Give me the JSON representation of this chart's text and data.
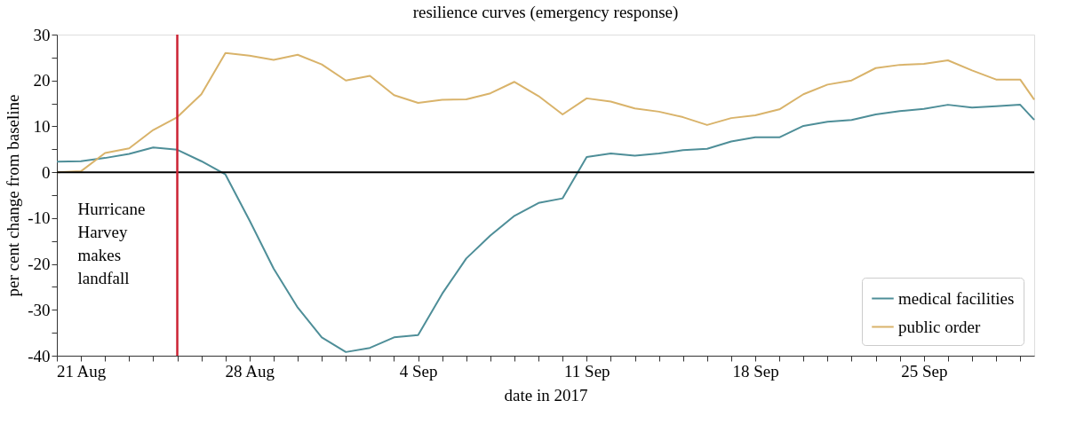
{
  "chart_data": {
    "type": "line",
    "title": "resilience curves (emergency response)",
    "xlabel": "date in 2017",
    "ylabel": "per cent change from baseline",
    "x": [
      "2017-08-20",
      "2017-08-21",
      "2017-08-22",
      "2017-08-23",
      "2017-08-24",
      "2017-08-25",
      "2017-08-26",
      "2017-08-27",
      "2017-08-28",
      "2017-08-29",
      "2017-08-30",
      "2017-08-31",
      "2017-09-01",
      "2017-09-02",
      "2017-09-03",
      "2017-09-04",
      "2017-09-05",
      "2017-09-06",
      "2017-09-07",
      "2017-09-08",
      "2017-09-09",
      "2017-09-10",
      "2017-09-11",
      "2017-09-12",
      "2017-09-13",
      "2017-09-14",
      "2017-09-15",
      "2017-09-16",
      "2017-09-17",
      "2017-09-18",
      "2017-09-19",
      "2017-09-20",
      "2017-09-21",
      "2017-09-22",
      "2017-09-23",
      "2017-09-24",
      "2017-09-25",
      "2017-09-26",
      "2017-09-27",
      "2017-09-28",
      "2017-09-29",
      "2017-09-29T14:00"
    ],
    "series": [
      {
        "name": "medical facilities",
        "color": "#4e8e98",
        "values": [
          2.3,
          2.4,
          3.1,
          4.0,
          5.4,
          4.9,
          2.4,
          -0.5,
          -10.5,
          -21,
          -29.5,
          -36,
          -39.2,
          -38.3,
          -36,
          -35.5,
          -26.5,
          -18.8,
          -13.8,
          -9.5,
          -6.7,
          -5.7,
          3.3,
          4.1,
          3.6,
          4.1,
          4.8,
          5.1,
          6.7,
          7.6,
          7.6,
          10.1,
          11.0,
          11.4,
          12.6,
          13.3,
          13.8,
          14.7,
          14.1,
          14.4,
          14.7,
          11.4
        ]
      },
      {
        "name": "public order",
        "color": "#d9b36a",
        "values": [
          0,
          0.2,
          4.2,
          5.2,
          9.2,
          12,
          17,
          26,
          25.4,
          24.5,
          25.6,
          23.5,
          20,
          21,
          16.8,
          15.1,
          15.8,
          15.9,
          17.2,
          19.7,
          16.6,
          12.6,
          16.1,
          15.4,
          13.9,
          13.2,
          12.0,
          10.3,
          11.8,
          12.4,
          13.7,
          17,
          19.1,
          20,
          22.7,
          23.4,
          23.6,
          24.4,
          22.2,
          20.2,
          20.2,
          15.8
        ]
      }
    ],
    "xlim": [
      "2017-08-20",
      "2017-09-29T14:00"
    ],
    "xticks": [
      {
        "value": "2017-08-20",
        "label": null
      },
      {
        "value": "2017-08-21",
        "label": "21 Aug"
      },
      {
        "value": "2017-08-22",
        "label": null
      },
      {
        "value": "2017-08-23",
        "label": null
      },
      {
        "value": "2017-08-24",
        "label": null
      },
      {
        "value": "2017-08-25",
        "label": null
      },
      {
        "value": "2017-08-26",
        "label": null
      },
      {
        "value": "2017-08-27",
        "label": null
      },
      {
        "value": "2017-08-28",
        "label": "28 Aug"
      },
      {
        "value": "2017-08-29",
        "label": null
      },
      {
        "value": "2017-08-30",
        "label": null
      },
      {
        "value": "2017-08-31",
        "label": null
      },
      {
        "value": "2017-09-01",
        "label": null
      },
      {
        "value": "2017-09-02",
        "label": null
      },
      {
        "value": "2017-09-03",
        "label": null
      },
      {
        "value": "2017-09-04",
        "label": "4 Sep"
      },
      {
        "value": "2017-09-05",
        "label": null
      },
      {
        "value": "2017-09-06",
        "label": null
      },
      {
        "value": "2017-09-07",
        "label": null
      },
      {
        "value": "2017-09-08",
        "label": null
      },
      {
        "value": "2017-09-09",
        "label": null
      },
      {
        "value": "2017-09-10",
        "label": null
      },
      {
        "value": "2017-09-11",
        "label": "11 Sep"
      },
      {
        "value": "2017-09-12",
        "label": null
      },
      {
        "value": "2017-09-13",
        "label": null
      },
      {
        "value": "2017-09-14",
        "label": null
      },
      {
        "value": "2017-09-15",
        "label": null
      },
      {
        "value": "2017-09-16",
        "label": null
      },
      {
        "value": "2017-09-17",
        "label": null
      },
      {
        "value": "2017-09-18",
        "label": "18 Sep"
      },
      {
        "value": "2017-09-19",
        "label": null
      },
      {
        "value": "2017-09-20",
        "label": null
      },
      {
        "value": "2017-09-21",
        "label": null
      },
      {
        "value": "2017-09-22",
        "label": null
      },
      {
        "value": "2017-09-23",
        "label": null
      },
      {
        "value": "2017-09-24",
        "label": null
      },
      {
        "value": "2017-09-25",
        "label": "25 Sep"
      },
      {
        "value": "2017-09-26",
        "label": null
      },
      {
        "value": "2017-09-27",
        "label": null
      },
      {
        "value": "2017-09-28",
        "label": null
      },
      {
        "value": "2017-09-29",
        "label": null
      }
    ],
    "ylim": [
      -40,
      30
    ],
    "yticks": [
      -40,
      {
        "value": -35,
        "label": null
      },
      -30,
      {
        "value": -25,
        "label": null
      },
      -20,
      {
        "value": -15,
        "label": null
      },
      -10,
      {
        "value": -5,
        "label": null
      },
      0,
      {
        "value": 5,
        "label": null
      },
      10,
      {
        "value": 15,
        "label": null
      },
      20,
      {
        "value": 25,
        "label": null
      },
      30
    ],
    "ref_lines": [
      {
        "axis": "y",
        "value": 0,
        "label": null,
        "color": "#000000"
      },
      {
        "axis": "x",
        "value": "2017-08-25",
        "label": "Hurricane Harvey makes landfall",
        "color": "#cc2233"
      }
    ],
    "grid": false,
    "legend": "bottom right",
    "marker": "none",
    "line_style": "solid"
  }
}
